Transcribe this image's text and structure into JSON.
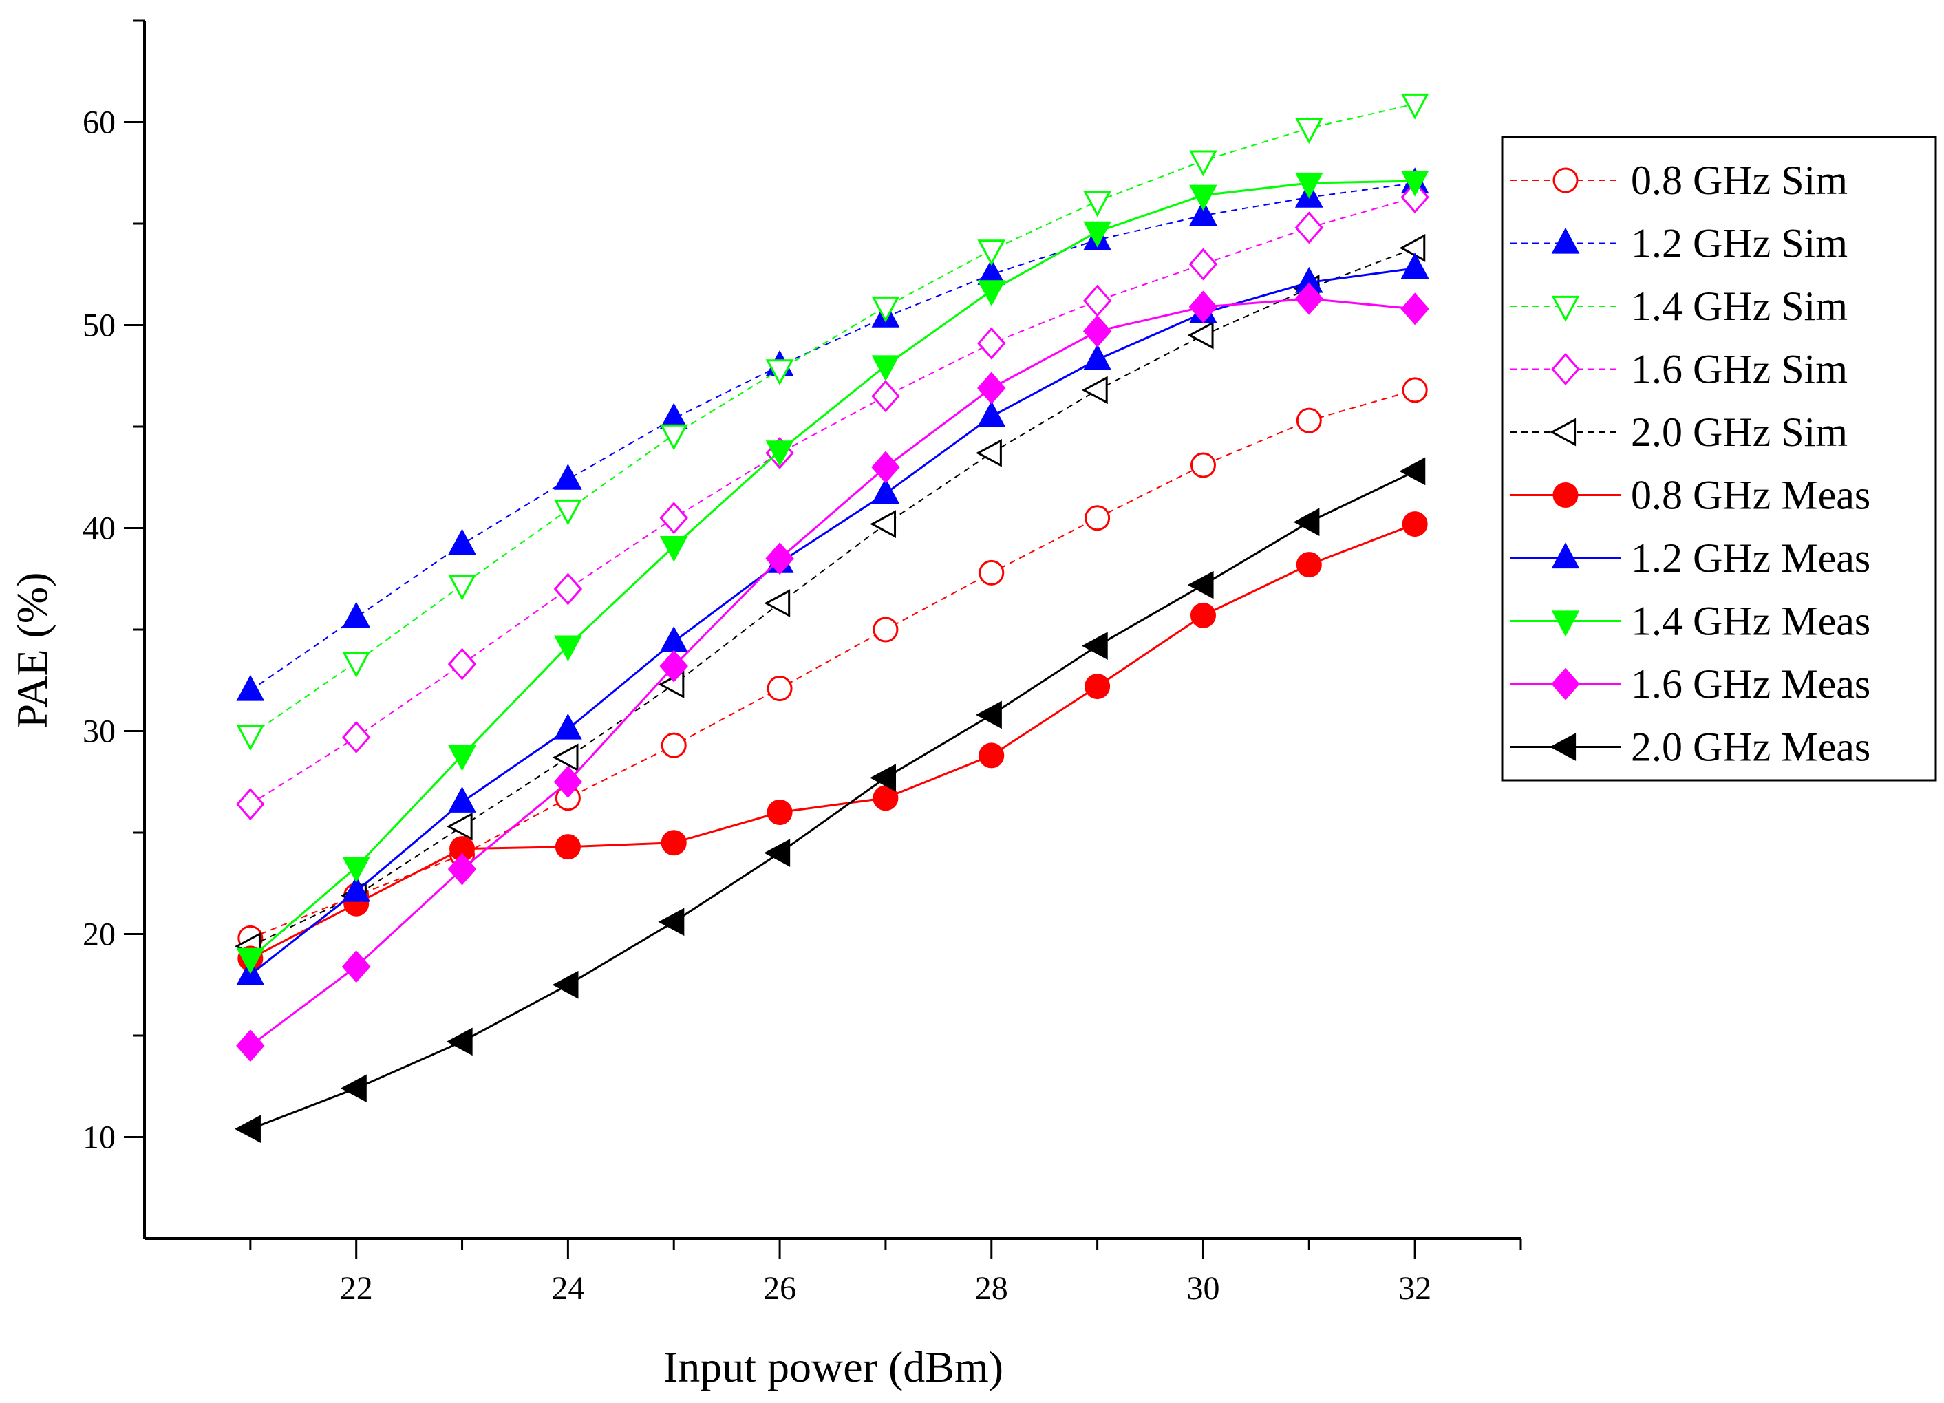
{
  "chart_data": {
    "type": "line",
    "xlabel": "Input power (dBm)",
    "ylabel": "PAE (%)",
    "xlim": [
      20,
      33
    ],
    "ylim": [
      5,
      65
    ],
    "xticks": [
      22,
      24,
      26,
      28,
      30,
      32
    ],
    "yticks": [
      10,
      20,
      30,
      40,
      50,
      60
    ],
    "grid": false,
    "legend_position": "right",
    "x": [
      21,
      22,
      23,
      24,
      25,
      26,
      27,
      28,
      29,
      30,
      31,
      32
    ],
    "series": [
      {
        "name": "0.8 GHz Sim",
        "color": "#ff0000",
        "dashed": true,
        "marker": "circle",
        "filled": false,
        "values": [
          19.8,
          21.9,
          23.9,
          26.7,
          29.3,
          32.1,
          35.0,
          37.8,
          40.5,
          43.1,
          45.3,
          46.8
        ]
      },
      {
        "name": "1.2 GHz Sim",
        "color": "#0000ff",
        "dashed": true,
        "marker": "triangle-up",
        "filled": true,
        "values": [
          32.0,
          35.6,
          39.2,
          42.4,
          45.4,
          48.0,
          50.4,
          52.5,
          54.2,
          55.4,
          56.3,
          57.0
        ]
      },
      {
        "name": "1.4 GHz Sim",
        "color": "#00ff00",
        "dashed": true,
        "marker": "triangle-down",
        "filled": false,
        "values": [
          29.8,
          33.4,
          37.2,
          40.9,
          44.6,
          47.8,
          50.9,
          53.7,
          56.1,
          58.1,
          59.7,
          60.9
        ]
      },
      {
        "name": "1.6 GHz Sim",
        "color": "#ff00ff",
        "dashed": true,
        "marker": "diamond",
        "filled": false,
        "values": [
          26.4,
          29.7,
          33.3,
          37.0,
          40.5,
          43.7,
          46.5,
          49.1,
          51.2,
          53.0,
          54.8,
          56.3
        ]
      },
      {
        "name": "2.0 GHz Sim",
        "color": "#000000",
        "dashed": true,
        "marker": "triangle-left",
        "filled": false,
        "values": [
          19.4,
          21.9,
          25.3,
          28.7,
          32.3,
          36.3,
          40.2,
          43.7,
          46.8,
          49.5,
          51.8,
          53.8
        ]
      },
      {
        "name": "0.8 GHz Meas",
        "color": "#ff0000",
        "dashed": false,
        "marker": "circle",
        "filled": true,
        "values": [
          18.8,
          21.5,
          24.2,
          24.3,
          24.5,
          26.0,
          26.7,
          28.8,
          32.2,
          35.7,
          38.2,
          40.2
        ]
      },
      {
        "name": "1.2 GHz Meas",
        "color": "#0000ff",
        "dashed": false,
        "marker": "triangle-up",
        "filled": true,
        "values": [
          18.0,
          22.1,
          26.5,
          30.1,
          34.4,
          38.3,
          41.7,
          45.5,
          48.3,
          50.6,
          52.1,
          52.8
        ]
      },
      {
        "name": "1.4 GHz Meas",
        "color": "#00ff00",
        "dashed": false,
        "marker": "triangle-down",
        "filled": true,
        "values": [
          18.8,
          23.3,
          28.8,
          34.2,
          39.1,
          43.8,
          48.0,
          51.7,
          54.6,
          56.4,
          57.0,
          57.1
        ]
      },
      {
        "name": "1.6 GHz Meas",
        "color": "#ff00ff",
        "dashed": false,
        "marker": "diamond",
        "filled": true,
        "values": [
          14.5,
          18.4,
          23.2,
          27.5,
          33.2,
          38.5,
          43.0,
          46.9,
          49.7,
          50.9,
          51.3,
          50.8
        ]
      },
      {
        "name": "2.0 GHz Meas",
        "color": "#000000",
        "dashed": false,
        "marker": "triangle-left",
        "filled": true,
        "values": [
          10.4,
          12.4,
          14.7,
          17.5,
          20.6,
          24.0,
          27.7,
          30.8,
          34.2,
          37.2,
          40.3,
          42.8
        ]
      }
    ]
  }
}
